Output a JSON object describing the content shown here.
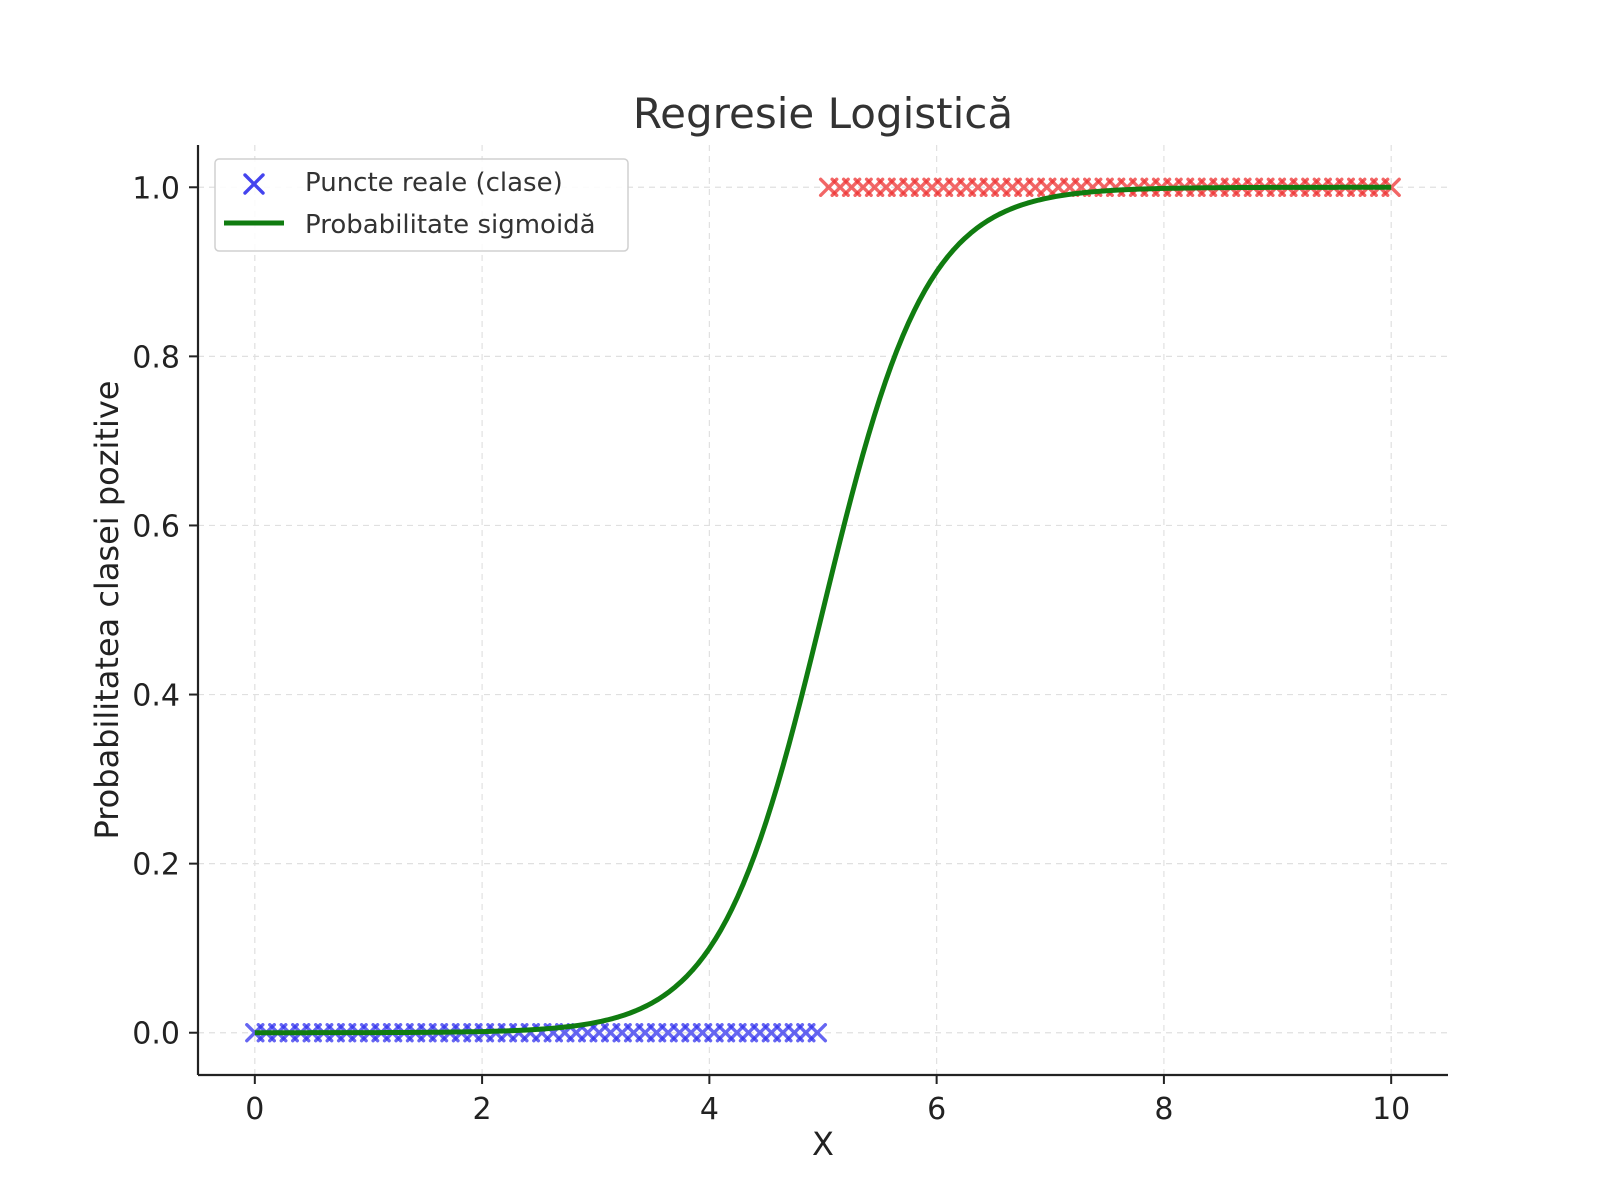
{
  "chart_data": {
    "type": "scatter+line",
    "title": "Regresie Logistică",
    "xlabel": "X",
    "ylabel": "Probabilitatea clasei pozitive",
    "xlim": [
      -0.5,
      10.5
    ],
    "ylim": [
      -0.05,
      1.05
    ],
    "xticks": [
      0,
      2,
      4,
      6,
      8,
      10
    ],
    "xtick_labels": [
      "0",
      "2",
      "4",
      "6",
      "8",
      "10"
    ],
    "yticks": [
      0.0,
      0.2,
      0.4,
      0.6,
      0.8,
      1.0
    ],
    "ytick_labels": [
      "0.0",
      "0.2",
      "0.4",
      "0.6",
      "0.8",
      "1.0"
    ],
    "grid": true,
    "legend_position": "top-left",
    "series": [
      {
        "name": "Puncte reale (clase)",
        "kind": "scatter",
        "marker": "x",
        "legend_color": "#4444ee",
        "groups": [
          {
            "class": 0,
            "color": "#3333ee",
            "x_start": 0.0,
            "x_end": 4.95,
            "count": 50,
            "y": 0
          },
          {
            "class": 1,
            "color": "#ee3333",
            "x_start": 5.05,
            "x_end": 10.0,
            "count": 50,
            "y": 1
          }
        ]
      },
      {
        "name": "Probabilitate sigmoidă",
        "kind": "line",
        "color": "#107c10",
        "function": "sigmoid",
        "k": 2.2,
        "x0": 5.0,
        "x_start": 0.0,
        "x_end": 10.0,
        "samples": 200
      }
    ]
  }
}
